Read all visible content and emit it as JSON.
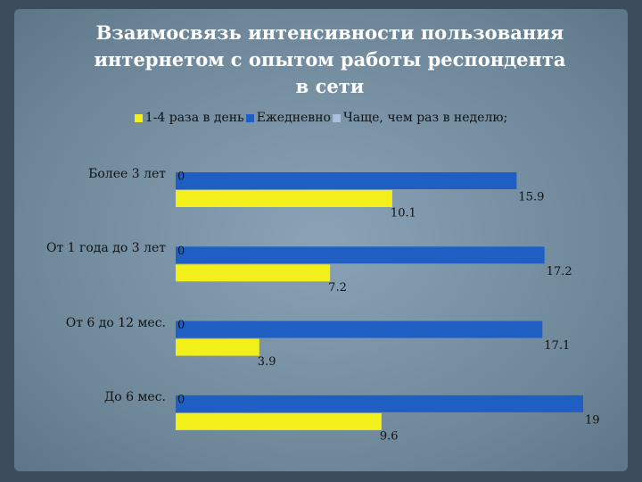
{
  "chart_data": {
    "type": "bar",
    "orientation": "horizontal",
    "title": "Взаимосвязь интенсивности пользования интернетом с опытом работы респондента в сети",
    "categories": [
      "Более 3 лет",
      "От 1 года до 3 лет",
      "От 6 до 12 мес.",
      "До 6 мес."
    ],
    "series": [
      {
        "name": "1-4 раза в день",
        "color": "#f2ef1a",
        "values": [
          10.1,
          7.2,
          3.9,
          9.6
        ]
      },
      {
        "name": "Ежедневно",
        "color": "#1f5fc4",
        "values": [
          15.9,
          17.2,
          17.1,
          19
        ]
      },
      {
        "name": "Чаще, чем раз в неделю;",
        "color": "#a9bfe0",
        "values": [
          0,
          0,
          0,
          0
        ]
      }
    ],
    "legend": "top"
  }
}
